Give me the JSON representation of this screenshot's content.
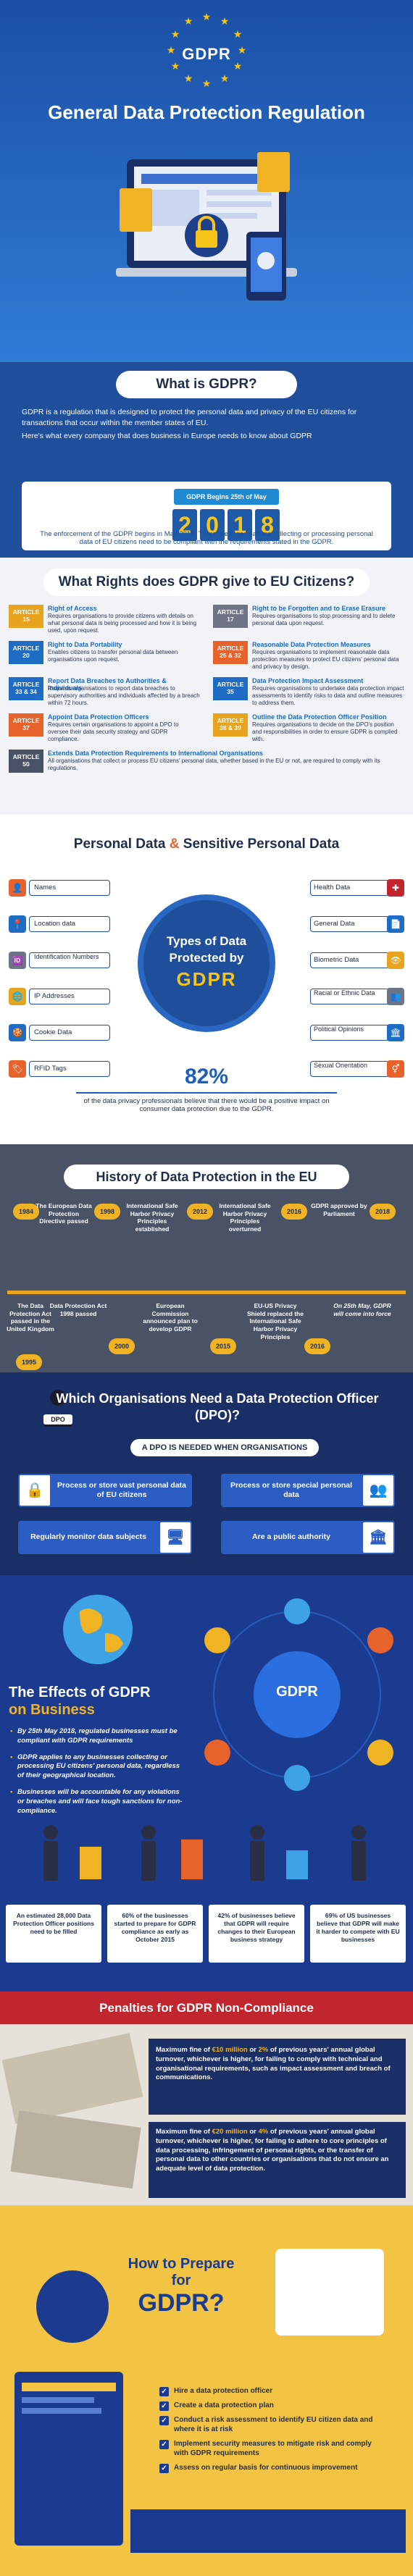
{
  "header": {
    "logo_text": "GDPR",
    "title": "General Data Protection Regulation"
  },
  "what": {
    "title": "What is GDPR?",
    "intro": "GDPR is a regulation that is designed to protect the personal data and privacy of the EU citizens for transactions that occur within the member states of EU.",
    "sub": "Here's what every company that does business in Europe needs to know about GDPR",
    "begins": "GDPR Begins 25th of May",
    "year_digits": [
      "2",
      "0",
      "1",
      "8"
    ],
    "enforcement": "The enforcement of the GDPR begins in May 2018. Therefore organisations collecting or processing personal data of EU citizens need to be compliant with the requirements stated in the GDPR."
  },
  "rights": {
    "title": "What Rights does GDPR give to EU Citizens?",
    "items": [
      {
        "article": "ARTICLE 15",
        "title": "Right of Access",
        "desc": "Requires organisations to provide citizens with details on what personal data is being processed and how it is being used, upon request.",
        "color": "#e8a31f"
      },
      {
        "article": "ARTICLE 17",
        "title": "Right to be Forgotten and to Erase Erasure",
        "desc": "Requires organisations to stop processing and to delete personal data upon request.",
        "color": "#6e7385"
      },
      {
        "article": "ARTICLE 20",
        "title": "Right to Data Portability",
        "desc": "Enables citizens to transfer personal data between organisations upon request.",
        "color": "#1e6cc4"
      },
      {
        "article": "ARTICLE 25 & 32",
        "title": "Reasonable Data Protection Measures",
        "desc": "Requires organisations to implement reasonable data protection measures to protect EU citizens' personal data and privacy by design.",
        "color": "#e8632b"
      },
      {
        "article": "ARTICLE 33 & 34",
        "title": "Report Data Breaches to Authorities & Individuals",
        "desc": "Requires organisations to report data breaches to supervisory authorities and individuals affected by a breach within 72 hours.",
        "color": "#1e6cc4"
      },
      {
        "article": "ARTICLE 35",
        "title": "Data Protection Impact Assessment",
        "desc": "Requires organisations to undertake data protection impact assessments to identify risks to data and outline measures to address them.",
        "color": "#1e6cc4"
      },
      {
        "article": "ARTICLE 37",
        "title": "Appoint Data Protection Officers",
        "desc": "Requires certain organisations to appoint a DPO to oversee their data security strategy and GDPR compliance.",
        "color": "#e8632b"
      },
      {
        "article": "ARTICLE 38 & 39",
        "title": "Outline the Data Protection Officer Position",
        "desc": "Requires organisations to decide on the DPO's position and responsibilities in order to ensure GDPR is complied with.",
        "color": "#e8a31f"
      },
      {
        "article": "ARTICLE 50",
        "title": "Extends Data Protection Requirements to International Organisations",
        "desc": "All organisations that collect or process EU citizens' personal data, whether based in the EU or not, are required to comply with its regulations.",
        "color": "#4a5266"
      }
    ]
  },
  "personal": {
    "title_a": "Personal Data",
    "amp": " & ",
    "title_b": "Sensitive Personal Data",
    "left": [
      "Names",
      "Location data",
      "Identification Numbers",
      "IP Addresses",
      "Cookie Data",
      "RFID Tags"
    ],
    "right": [
      "Health Data",
      "General Data",
      "Biometric Data",
      "Racial or Ethnic Data",
      "Political Opinions",
      "Sexual Orientation"
    ],
    "circle_1": "Types of Data",
    "circle_2": "Protected by",
    "circle_3": "GDPR",
    "stat": "82%",
    "stat_desc": "of the data privacy professionals believe that there would be a positive impact on consumer data protection due to the GDPR."
  },
  "history": {
    "title": "History of Data Protection in the EU",
    "top": [
      {
        "year": "1984",
        "text": ""
      },
      {
        "year": "",
        "text": "The European Data Protection Directive passed"
      },
      {
        "year": "1998",
        "text": ""
      },
      {
        "year": "",
        "text": "International Safe Harbor Privacy Principles established"
      },
      {
        "year": "2012",
        "text": ""
      },
      {
        "year": "",
        "text": "International Safe Harbor Privacy Principles overturned"
      },
      {
        "year": "2016",
        "text": ""
      },
      {
        "year": "",
        "text": "GDPR approved by Parliament"
      },
      {
        "year": "2018",
        "text": ""
      }
    ],
    "bottom": [
      {
        "year": "1995",
        "text": "The Data Protection Act passed in the United Kingdom"
      },
      {
        "year": "",
        "text": "Data Protection Act 1998 passed"
      },
      {
        "year": "2000",
        "text": ""
      },
      {
        "year": "",
        "text": "European Commission announced plan to develop GDPR"
      },
      {
        "year": "2015",
        "text": ""
      },
      {
        "year": "",
        "text": "EU-US Privacy Shield replaced the International Safe Harbor Privacy Principles"
      },
      {
        "year": "2016",
        "text": ""
      },
      {
        "year": "",
        "text": "On 25th May, GDPR will come into force"
      }
    ]
  },
  "dpo": {
    "title": "Which Organisations Need a Data Protection Officer (DPO)?",
    "icon_label": "DPO",
    "sub": "A DPO IS NEEDED WHEN ORGANISATIONS",
    "boxes": [
      "Process or store vast personal data of EU citizens",
      "Process or store special personal data",
      "Regularly monitor data subjects",
      "Are a public authority"
    ]
  },
  "effects": {
    "center": "GDPR",
    "title_1": "The Effects of GDPR",
    "title_2": "on Business",
    "bullets": [
      "By 25th May 2018, regulated businesses must be compliant with GDPR requirements",
      "GDPR applies to any businesses collecting or processing EU citizens' personal data, regardless of their geographical location.",
      "Businesses will be accountable for any violations or breaches and will face tough sanctions for non-compliance."
    ],
    "stats": [
      "An estimated 28,000 Data Protection Officer positions need to be filled",
      "60% of the businesses started to prepare for GDPR compliance as early as October 2015",
      "42% of businesses believe that GDPR will require changes to their European business strategy",
      "69% of US businesses believe that GDPR will make it harder to compete with EU businesses"
    ]
  },
  "penalties": {
    "title": "Penalties for GDPR Non-Compliance",
    "p1_a": "Maximum fine of ",
    "p1_b": "€10 million",
    "p1_c": " or ",
    "p1_d": "2%",
    "p1_e": " of previous years' annual global turnover, whichever is higher, for failing to comply with technical and organisational requirements, such as impact assessment and breach of communications.",
    "p2_a": "Maximum fine of ",
    "p2_b": "€20 million",
    "p2_c": " or ",
    "p2_d": "4%",
    "p2_e": " of previous years' annual global turnover, whichever is higher, for failing to adhere to core principles of data processing, infringement of personal rights, or the transfer of personal data to other countries or organisations that do not ensure an adequate level of data protection."
  },
  "prepare": {
    "line1": "How to Prepare",
    "line2": "for",
    "line3": "GDPR?",
    "items": [
      "Hire a data protection officer",
      "Create a data protection plan",
      "Conduct a risk assessment to identify EU citizen data and where it is at risk",
      "Implement security measures to mitigate risk and comply with GDPR requirements",
      "Assess on regular basis for continuous improvement"
    ]
  }
}
